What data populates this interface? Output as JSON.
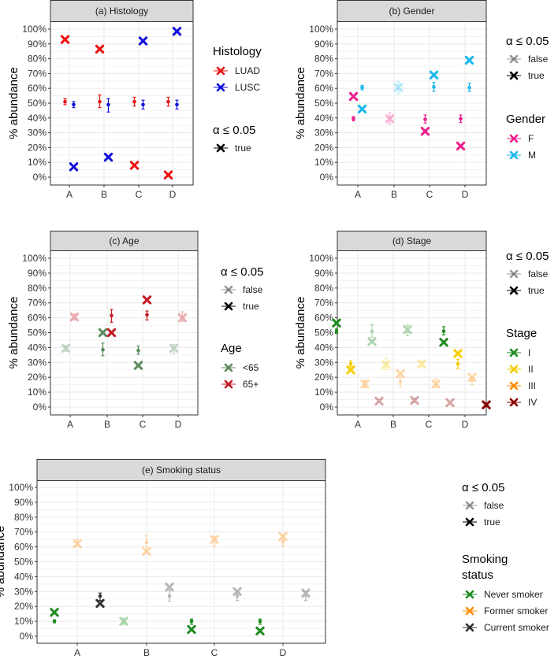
{
  "chart_data": [
    {
      "type": "scatter",
      "title": "(a) Histology",
      "ylabel": "% abundance",
      "ylim": [
        0,
        100
      ],
      "yticks": [
        "0%",
        "10%",
        "20%",
        "30%",
        "40%",
        "50%",
        "60%",
        "70%",
        "80%",
        "90%",
        "100%"
      ],
      "categories": [
        "A",
        "B",
        "C",
        "D"
      ],
      "legend_title": "Histology",
      "sig_legend_title": "α ≤ 0.05",
      "sig_levels": [
        "true"
      ],
      "series": [
        {
          "name": "LUAD",
          "color": "#ee1111",
          "points": [
            {
              "est": 51,
              "lo": 49,
              "hi": 53,
              "obs": 93,
              "sig": true
            },
            {
              "est": 51,
              "lo": 47,
              "hi": 55.5,
              "obs": 86.5,
              "sig": true
            },
            {
              "est": 51,
              "lo": 48,
              "hi": 54,
              "obs": 8,
              "sig": true
            },
            {
              "est": 51,
              "lo": 48,
              "hi": 54,
              "obs": 1.5,
              "sig": true
            }
          ]
        },
        {
          "name": "LUSC",
          "color": "#1111dd",
          "points": [
            {
              "est": 49,
              "lo": 47,
              "hi": 51,
              "obs": 7,
              "sig": true
            },
            {
              "est": 49,
              "lo": 44,
              "hi": 53,
              "obs": 13.5,
              "sig": true
            },
            {
              "est": 49,
              "lo": 46,
              "hi": 52,
              "obs": 92,
              "sig": true
            },
            {
              "est": 49,
              "lo": 46,
              "hi": 52,
              "obs": 98.5,
              "sig": true
            }
          ]
        }
      ]
    },
    {
      "type": "scatter",
      "title": "(b) Gender",
      "ylabel": "% abundance",
      "ylim": [
        0,
        100
      ],
      "yticks": [
        "0%",
        "10%",
        "20%",
        "30%",
        "40%",
        "50%",
        "60%",
        "70%",
        "80%",
        "90%",
        "100%"
      ],
      "categories": [
        "A",
        "B",
        "C",
        "D"
      ],
      "legend_title": "Gender",
      "sig_legend_title": "α ≤ 0.05",
      "sig_levels": [
        "false",
        "true"
      ],
      "series": [
        {
          "name": "F",
          "color": "#ee1f8c",
          "points": [
            {
              "est": 39.5,
              "lo": 38,
              "hi": 41,
              "obs": 54.5,
              "sig": true
            },
            {
              "est": 39.5,
              "lo": 36,
              "hi": 43.5,
              "obs": 39.5,
              "sig": false
            },
            {
              "est": 39,
              "lo": 36.5,
              "hi": 42,
              "obs": 31,
              "sig": true
            },
            {
              "est": 39.5,
              "lo": 37,
              "hi": 42,
              "obs": 21,
              "sig": true
            }
          ]
        },
        {
          "name": "M",
          "color": "#19b8ec",
          "points": [
            {
              "est": 60.5,
              "lo": 59,
              "hi": 62,
              "obs": 46,
              "sig": true
            },
            {
              "est": 60.5,
              "lo": 56.5,
              "hi": 64.5,
              "obs": 60.5,
              "sig": false
            },
            {
              "est": 61,
              "lo": 58,
              "hi": 64,
              "obs": 69,
              "sig": true
            },
            {
              "est": 60.5,
              "lo": 58,
              "hi": 63.5,
              "obs": 79,
              "sig": true
            }
          ]
        }
      ]
    },
    {
      "type": "scatter",
      "title": "(c) Age",
      "ylabel": "% abundance",
      "ylim": [
        0,
        100
      ],
      "yticks": [
        "0%",
        "10%",
        "20%",
        "30%",
        "40%",
        "50%",
        "60%",
        "70%",
        "80%",
        "90%",
        "100%"
      ],
      "categories": [
        "A",
        "B",
        "C",
        "D"
      ],
      "legend_title": "Age",
      "sig_legend_title": "α ≤ 0.05",
      "sig_levels": [
        "false",
        "true"
      ],
      "series": [
        {
          "name": "<65",
          "color": "#5b8a5b",
          "points": [
            {
              "est": 39.5,
              "lo": 37.5,
              "hi": 41.5,
              "obs": 39.5,
              "sig": false
            },
            {
              "est": 38.5,
              "lo": 34.5,
              "hi": 43,
              "obs": 50,
              "sig": true
            },
            {
              "est": 38,
              "lo": 35.5,
              "hi": 41,
              "obs": 28,
              "sig": true
            },
            {
              "est": 39.5,
              "lo": 36,
              "hi": 42,
              "obs": 39.5,
              "sig": false
            }
          ]
        },
        {
          "name": "65+",
          "color": "#c41a22",
          "points": [
            {
              "est": 60.5,
              "lo": 58.5,
              "hi": 62.5,
              "obs": 60.5,
              "sig": false
            },
            {
              "est": 61.5,
              "lo": 57,
              "hi": 65.5,
              "obs": 50,
              "sig": true
            },
            {
              "est": 62,
              "lo": 58.5,
              "hi": 64.5,
              "obs": 72,
              "sig": true
            },
            {
              "est": 60.5,
              "lo": 57.5,
              "hi": 64,
              "obs": 60,
              "sig": false
            }
          ]
        }
      ]
    },
    {
      "type": "scatter",
      "title": "(d) Stage",
      "ylabel": "% abundance",
      "ylim": [
        0,
        100
      ],
      "yticks": [
        "0%",
        "10%",
        "20%",
        "30%",
        "40%",
        "50%",
        "60%",
        "70%",
        "80%",
        "90%",
        "100%"
      ],
      "categories": [
        "A",
        "B",
        "C",
        "D"
      ],
      "legend_title": "Stage",
      "sig_legend_title": "α ≤ 0.05",
      "sig_levels": [
        "false",
        "true"
      ],
      "series": [
        {
          "name": "I",
          "color": "#1e8c1e",
          "points": [
            {
              "est": 51,
              "lo": 49.5,
              "hi": 52.5,
              "obs": 56.5,
              "sig": true
            },
            {
              "est": 51,
              "lo": 47,
              "hi": 55.5,
              "obs": 44,
              "sig": false
            },
            {
              "est": 52,
              "lo": 48,
              "hi": 55,
              "obs": 52,
              "sig": false
            },
            {
              "est": 51,
              "lo": 48.5,
              "hi": 54,
              "obs": 43.5,
              "sig": true
            }
          ]
        },
        {
          "name": "II",
          "color": "#f5cc00",
          "points": [
            {
              "est": 29,
              "lo": 27,
              "hi": 31,
              "obs": 25,
              "sig": true
            },
            {
              "est": 28.5,
              "lo": 25,
              "hi": 33,
              "obs": 28.5,
              "sig": false
            },
            {
              "est": 29,
              "lo": 27,
              "hi": 31,
              "obs": 29,
              "sig": false
            },
            {
              "est": 29,
              "lo": 26,
              "hi": 32,
              "obs": 36,
              "sig": true
            }
          ]
        },
        {
          "name": "III",
          "color": "#ff8c00",
          "points": [
            {
              "est": 15.5,
              "lo": 13,
              "hi": 18,
              "obs": 15.5,
              "sig": false
            },
            {
              "est": 17,
              "lo": 13.5,
              "hi": 20,
              "obs": 22.5,
              "sig": false
            },
            {
              "est": 16,
              "lo": 13,
              "hi": 19,
              "obs": 15.5,
              "sig": false
            },
            {
              "est": 18,
              "lo": 15,
              "hi": 21,
              "obs": 20,
              "sig": false
            }
          ]
        },
        {
          "name": "IV",
          "color": "#8b0000",
          "points": [
            {
              "est": 4,
              "lo": 3,
              "hi": 5,
              "obs": 4,
              "sig": false
            },
            {
              "est": 4.5,
              "lo": 3,
              "hi": 6,
              "obs": 4.5,
              "sig": false
            },
            {
              "est": 3,
              "lo": 2,
              "hi": 4,
              "obs": 3,
              "sig": false
            },
            {
              "est": 1,
              "lo": 0.5,
              "hi": 2,
              "obs": 1.5,
              "sig": true
            }
          ]
        }
      ]
    },
    {
      "type": "scatter",
      "title": "(e) Smoking status",
      "ylabel": "% abundance",
      "ylim": [
        0,
        100
      ],
      "yticks": [
        "0%",
        "10%",
        "20%",
        "30%",
        "40%",
        "50%",
        "60%",
        "70%",
        "80%",
        "90%",
        "100%"
      ],
      "categories": [
        "A",
        "B",
        "C",
        "D"
      ],
      "legend_title": "Smoking status",
      "legend_title_lines": [
        "Smoking",
        "status"
      ],
      "sig_legend_title": "α ≤ 0.05",
      "sig_levels": [
        "false",
        "true"
      ],
      "series": [
        {
          "name": "Never smoker",
          "color": "#1e8c1e",
          "points": [
            {
              "est": 10,
              "lo": 9,
              "hi": 11,
              "obs": 16,
              "sig": true
            },
            {
              "est": 10,
              "lo": 8,
              "hi": 12,
              "obs": 10,
              "sig": false
            },
            {
              "est": 10,
              "lo": 8,
              "hi": 11.5,
              "obs": 4.5,
              "sig": true
            },
            {
              "est": 10,
              "lo": 8,
              "hi": 11.5,
              "obs": 3.5,
              "sig": true
            }
          ]
        },
        {
          "name": "Former smoker",
          "color": "#ff8c00",
          "points": [
            {
              "est": 63,
              "lo": 61.5,
              "hi": 65,
              "obs": 62,
              "sig": false
            },
            {
              "est": 63,
              "lo": 58,
              "hi": 67.5,
              "obs": 57,
              "sig": false
            },
            {
              "est": 64,
              "lo": 60.5,
              "hi": 67,
              "obs": 65,
              "sig": false
            },
            {
              "est": 63.5,
              "lo": 60.5,
              "hi": 67,
              "obs": 67,
              "sig": false
            }
          ]
        },
        {
          "name": "Current smoker",
          "color": "#333333",
          "points": [
            {
              "est": 27,
              "lo": 24,
              "hi": 29,
              "obs": 22,
              "sig": true
            },
            {
              "est": 27,
              "lo": 23.5,
              "hi": 31,
              "obs": 33,
              "sig": false
            },
            {
              "est": 27,
              "lo": 24,
              "hi": 30,
              "obs": 30,
              "sig": false
            },
            {
              "est": 27.5,
              "lo": 24,
              "hi": 30,
              "obs": 29,
              "sig": false
            }
          ]
        }
      ]
    }
  ]
}
